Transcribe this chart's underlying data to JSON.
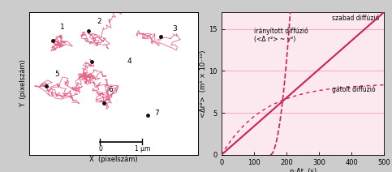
{
  "left_panel": {
    "bg_color": "#ffffff",
    "outer_bg": "#cccccc",
    "ylabel": "Y  (pixelszám)",
    "xlabel": "X  (pixelszám)",
    "track_color": "#e8668a",
    "dot_color": "#111111"
  },
  "right_panel": {
    "bg_color": "#fce8ef",
    "outer_bg": "#cccccc",
    "ylabel": "<Δr²>  (m² × 10⁻¹²)",
    "xlabel": "n·Δt  (s)",
    "xmin": 0,
    "xmax": 500,
    "ymin": 0,
    "ymax": 17,
    "xticks": [
      0,
      100,
      200,
      300,
      400,
      500
    ],
    "yticks": [
      0,
      5,
      10,
      15
    ],
    "grid_color": "#f0b0c8",
    "line_color": "#cc2255",
    "label_iranyitott": "irányított diffúzió\n(<Δ r²> ~ v²)",
    "label_szabad": "szabad diffúzió",
    "label_gatolt": "gátolt diffúzió"
  }
}
